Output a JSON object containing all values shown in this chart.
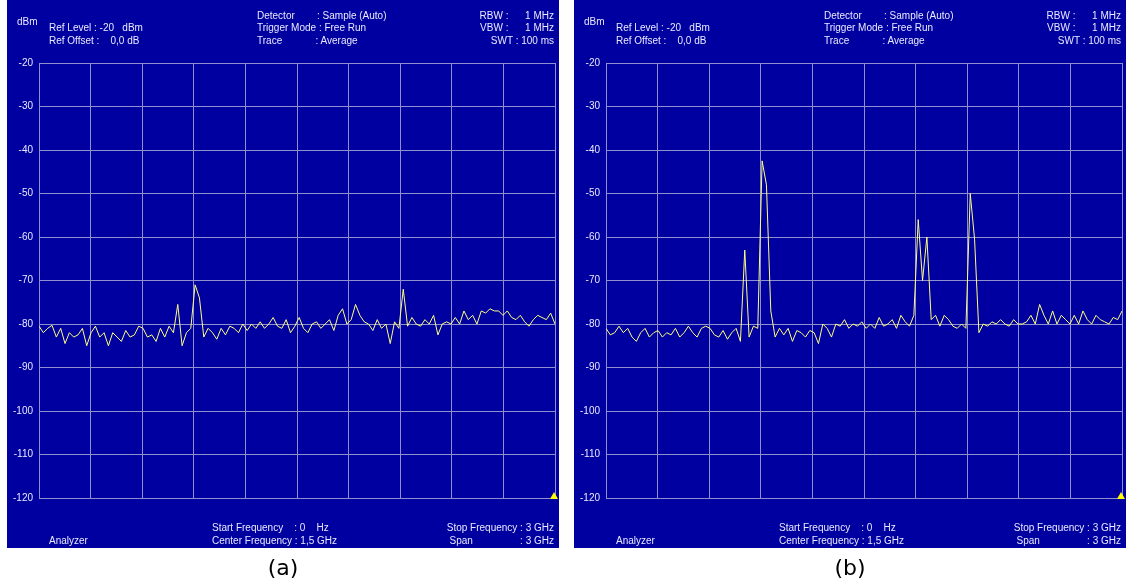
{
  "chart_data": [
    {
      "type": "line",
      "title": "(a)",
      "ylabel": "dBm",
      "ylim": [
        -120,
        -20
      ],
      "yticks": [
        -20,
        -30,
        -40,
        -50,
        -60,
        -70,
        -80,
        -90,
        -100,
        -110,
        -120
      ],
      "grid": true,
      "legend": false,
      "marker": "none",
      "line_style": "solid",
      "tick_labels": "y",
      "annotations": [
        "Ref Level : -20   dBm",
        "Ref Offset :    0,0 dB",
        "Detector        : Sample (Auto)",
        "Trigger Mode : Free Run",
        "Trace            : Average",
        "RBW :      1 MHz",
        "VBW :      1 MHz",
        "SWT : 100 ms",
        "Start Frequency    : 0    Hz",
        "Center Frequency : 1,5 GHz",
        "Stop Frequency : 3 GHz",
        "Span                 : 3 GHz",
        "Analyzer"
      ],
      "categories": [
        null,
        null,
        null,
        null,
        null,
        null,
        null,
        null,
        null,
        null,
        null,
        null,
        null,
        null,
        null,
        null,
        null,
        null,
        null,
        null,
        null,
        null,
        null,
        null,
        null,
        null,
        null,
        null,
        null,
        null,
        null,
        null,
        null,
        null,
        null,
        null,
        null,
        null,
        null,
        null,
        null,
        null,
        null,
        null,
        null,
        null,
        null,
        null,
        null,
        null,
        null,
        null,
        null,
        null,
        null,
        null,
        null,
        null,
        null,
        null,
        null,
        null,
        null,
        null,
        null,
        null,
        null,
        null,
        null,
        null,
        null,
        null,
        null,
        null,
        null,
        null,
        null,
        null,
        null,
        null,
        null,
        null,
        null,
        null,
        null,
        null,
        null,
        null,
        null,
        null,
        null,
        null,
        null,
        null,
        null,
        null,
        null,
        null,
        null,
        null,
        null,
        null,
        null,
        null,
        null,
        null,
        null,
        null,
        null,
        null,
        null,
        null,
        null,
        null,
        null,
        null,
        null,
        null,
        null,
        null
      ],
      "series": [
        {
          "color": "#ffff80",
          "values": [
            -80.5,
            -82,
            -81,
            -80.3,
            -83,
            -81,
            -84.5,
            -82,
            -83,
            -82.5,
            -81,
            -85,
            -82,
            -80.5,
            -83,
            -82,
            -85,
            -82,
            -83,
            -84,
            -81.5,
            -83,
            -82.5,
            -80.5,
            -81,
            -83,
            -82.5,
            -84,
            -81,
            -83,
            -80.5,
            -82,
            -75.5,
            -85,
            -82,
            -81,
            -71,
            -74,
            -83,
            -81,
            -82,
            -83.5,
            -81,
            -82.5,
            -80.5,
            -81,
            -82,
            -80,
            -81.5,
            -80,
            -81,
            -79.5,
            -81,
            -80,
            -78.5,
            -80.5,
            -81,
            -79,
            -82,
            -80.5,
            -78.5,
            -81,
            -82,
            -80,
            -79.5,
            -81,
            -80,
            -79,
            -81.5,
            -78,
            -76.5,
            -80,
            -79,
            -75.5,
            -78,
            -79.5,
            -80,
            -81.5,
            -79,
            -81,
            -80,
            -84.5,
            -79.5,
            -81,
            -72,
            -80.5,
            -78.5,
            -80,
            -80.5,
            -79,
            -80,
            -78,
            -82.5,
            -80,
            -79.5,
            -80,
            -78.5,
            -80,
            -77,
            -79,
            -78,
            -80,
            -77,
            -77.5,
            -76.5,
            -77,
            -77,
            -78,
            -77,
            -78.5,
            -79,
            -78,
            -79.5,
            -80.5,
            -79,
            -78,
            -78.5,
            -79,
            -77.5,
            -80
          ]
        }
      ]
    },
    {
      "type": "line",
      "title": "(b)",
      "ylabel": "dBm",
      "ylim": [
        -120,
        -20
      ],
      "yticks": [
        -20,
        -30,
        -40,
        -50,
        -60,
        -70,
        -80,
        -90,
        -100,
        -110,
        -120
      ],
      "grid": true,
      "legend": false,
      "marker": "none",
      "line_style": "solid",
      "tick_labels": "y",
      "annotations": [
        "Ref Level : -20   dBm",
        "Ref Offset :    0,0 dB",
        "Detector        : Sample (Auto)",
        "Trigger Mode : Free Run",
        "Trace            : Average",
        "RBW :      1 MHz",
        "VBW :      1 MHz",
        "SWT : 100 ms",
        "Start Frequency    : 0    Hz",
        "Center Frequency : 1,5 GHz",
        "Stop Frequency : 3 GHz",
        "Span                 : 3 GHz",
        "Analyzer"
      ],
      "categories": [
        null,
        null,
        null,
        null,
        null,
        null,
        null,
        null,
        null,
        null,
        null,
        null,
        null,
        null,
        null,
        null,
        null,
        null,
        null,
        null,
        null,
        null,
        null,
        null,
        null,
        null,
        null,
        null,
        null,
        null,
        null,
        null,
        null,
        null,
        null,
        null,
        null,
        null,
        null,
        null,
        null,
        null,
        null,
        null,
        null,
        null,
        null,
        null,
        null,
        null,
        null,
        null,
        null,
        null,
        null,
        null,
        null,
        null,
        null,
        null,
        null,
        null,
        null,
        null,
        null,
        null,
        null,
        null,
        null,
        null,
        null,
        null,
        null,
        null,
        null,
        null,
        null,
        null,
        null,
        null,
        null,
        null,
        null,
        null,
        null,
        null,
        null,
        null,
        null,
        null,
        null,
        null,
        null,
        null,
        null,
        null,
        null,
        null,
        null,
        null,
        null,
        null,
        null,
        null,
        null,
        null,
        null,
        null,
        null,
        null,
        null,
        null,
        null,
        null,
        null,
        null,
        null,
        null,
        null,
        null
      ],
      "series": [
        {
          "color": "#ffff80",
          "values": [
            -81,
            -82.5,
            -82,
            -80.5,
            -82,
            -81,
            -83,
            -84,
            -82,
            -81,
            -83,
            -82,
            -81.5,
            -83,
            -82,
            -82.5,
            -81,
            -83,
            -82,
            -80.5,
            -82,
            -83,
            -81,
            -80.5,
            -81,
            -82.5,
            -83,
            -81.5,
            -83.5,
            -82,
            -81,
            -84,
            -63,
            -83,
            -80.5,
            -81,
            -42.5,
            -48,
            -77,
            -83,
            -81,
            -82.5,
            -81,
            -84,
            -81.5,
            -82,
            -83,
            -81.5,
            -82,
            -84.5,
            -80,
            -81,
            -83,
            -80,
            -80.5,
            -79,
            -81,
            -80,
            -80.5,
            -79.5,
            -81,
            -80,
            -81,
            -78.5,
            -80.5,
            -80,
            -79,
            -81,
            -78,
            -79.5,
            -80.5,
            -78,
            -56,
            -70,
            -60,
            -79,
            -78,
            -80.5,
            -78,
            -79,
            -80.5,
            -81,
            -80,
            -81,
            -50,
            -60.5,
            -82,
            -80,
            -80.5,
            -79.5,
            -80,
            -79,
            -80,
            -80.5,
            -79,
            -80,
            -80,
            -79.5,
            -78,
            -80,
            -75.5,
            -78,
            -80,
            -77,
            -80,
            -78,
            -79,
            -80,
            -78,
            -80,
            -77,
            -79,
            -80,
            -78,
            -79,
            -79.5,
            -80,
            -78.5,
            -79,
            -77
          ]
        }
      ]
    }
  ]
}
